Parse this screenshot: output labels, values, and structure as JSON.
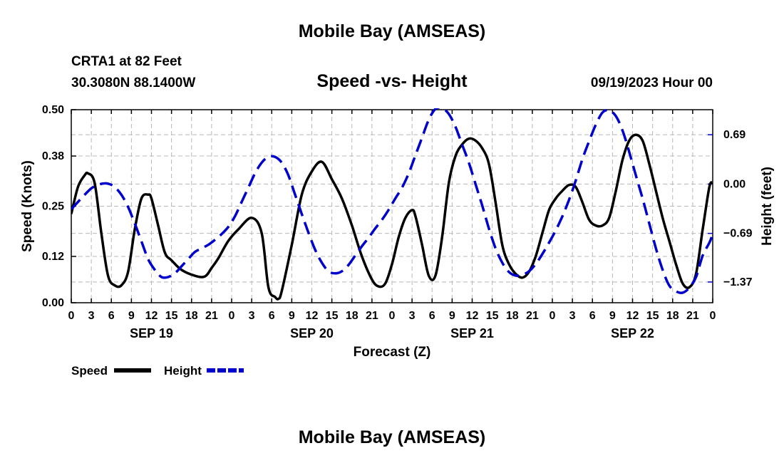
{
  "header": {
    "title": "Mobile Bay (AMSEAS)",
    "station": "CRTA1 at 82 Feet",
    "coordinates": "30.3080N  88.1400W",
    "datetime": "09/19/2023 Hour 00"
  },
  "footer": {
    "title": "Mobile Bay (AMSEAS)"
  },
  "chart_data": {
    "type": "line",
    "title": "Speed -vs- Height",
    "xlabel": "Forecast (Z)",
    "ylabel": "Speed (Knots)",
    "y2label": "Height (feet)",
    "xlim": [
      0,
      96
    ],
    "ylim": [
      0,
      0.5
    ],
    "y2lim": [
      -1.66,
      1.04
    ],
    "grid": true,
    "legend_position": "bottom-left",
    "x_ticks": [
      0,
      3,
      6,
      9,
      12,
      15,
      18,
      21,
      24,
      27,
      30,
      33,
      36,
      39,
      42,
      45,
      48,
      51,
      54,
      57,
      60,
      63,
      66,
      69,
      72,
      75,
      78,
      81,
      84,
      87,
      90,
      93,
      96
    ],
    "x_tick_labels": [
      "0",
      "3",
      "6",
      "9",
      "12",
      "15",
      "18",
      "21",
      "0",
      "3",
      "6",
      "9",
      "12",
      "15",
      "18",
      "21",
      "0",
      "3",
      "6",
      "9",
      "12",
      "15",
      "18",
      "21",
      "0",
      "3",
      "6",
      "9",
      "12",
      "15",
      "18",
      "21",
      "0"
    ],
    "day_labels": [
      {
        "at": 12,
        "label": "SEP 19"
      },
      {
        "at": 36,
        "label": "SEP 20"
      },
      {
        "at": 60,
        "label": "SEP 21"
      },
      {
        "at": 84,
        "label": "SEP 22"
      }
    ],
    "y_ticks": [
      0.0,
      0.12,
      0.25,
      0.38,
      0.5
    ],
    "y_tick_labels": [
      "0.00",
      "0.12",
      "0.25",
      "0.38",
      "0.50"
    ],
    "y2_ticks": [
      -1.37,
      -0.69,
      0.0,
      0.69
    ],
    "y2_tick_labels": [
      "−1.37",
      "−0.69",
      "0.00",
      "0.69"
    ],
    "series": [
      {
        "name": "Speed",
        "axis": "left",
        "color": "#000000",
        "style": "solid",
        "x": [
          0,
          1,
          2,
          2.5,
          3.5,
          4.5,
          5.5,
          6.5,
          7.5,
          8.5,
          9.5,
          10.5,
          11.5,
          12,
          13,
          14,
          15,
          16.5,
          18.5,
          20,
          21,
          22,
          23.5,
          25,
          27,
          28.5,
          29.5,
          30.5,
          31,
          31.5,
          33,
          34.5,
          36,
          37.5,
          39,
          40.5,
          42,
          43.5,
          45,
          46,
          47,
          48,
          49,
          50,
          51,
          51.5,
          52.5,
          53.5,
          54.5,
          55.5,
          56.5,
          57.5,
          58.5,
          59.5,
          60.5,
          61.5,
          62.5,
          63.5,
          64.5,
          65.5,
          66.5,
          67.5,
          68.5,
          69.5,
          70.5,
          71.5,
          72.5,
          73.5,
          74.5,
          75.5,
          76.5,
          77.5,
          78.5,
          79.5,
          80.5,
          81.5,
          82.5,
          83.5,
          84.5,
          85.5,
          86.5,
          87.5,
          88.5,
          89.5,
          90.5,
          91.5,
          92.5,
          93.5,
          94.5,
          95.5,
          96
        ],
        "values": [
          0.23,
          0.3,
          0.33,
          0.335,
          0.31,
          0.18,
          0.07,
          0.045,
          0.045,
          0.08,
          0.19,
          0.27,
          0.28,
          0.27,
          0.2,
          0.13,
          0.11,
          0.085,
          0.07,
          0.068,
          0.09,
          0.115,
          0.16,
          0.19,
          0.22,
          0.18,
          0.04,
          0.015,
          0.01,
          0.03,
          0.15,
          0.28,
          0.34,
          0.365,
          0.32,
          0.27,
          0.2,
          0.12,
          0.06,
          0.042,
          0.05,
          0.1,
          0.17,
          0.22,
          0.24,
          0.225,
          0.15,
          0.07,
          0.07,
          0.17,
          0.31,
          0.38,
          0.41,
          0.425,
          0.42,
          0.4,
          0.36,
          0.26,
          0.15,
          0.1,
          0.075,
          0.065,
          0.08,
          0.12,
          0.18,
          0.24,
          0.27,
          0.29,
          0.305,
          0.3,
          0.26,
          0.215,
          0.2,
          0.2,
          0.22,
          0.29,
          0.37,
          0.42,
          0.435,
          0.42,
          0.36,
          0.29,
          0.22,
          0.16,
          0.1,
          0.05,
          0.04,
          0.075,
          0.19,
          0.3,
          0.31
        ]
      },
      {
        "name": "Height",
        "axis": "right",
        "color": "#0000cc",
        "style": "dashed",
        "x": [
          0,
          1,
          2,
          3,
          4,
          5,
          5.7,
          6.5,
          7.5,
          8.5,
          9.5,
          10.5,
          11.5,
          12.5,
          13.5,
          14.5,
          15.5,
          16.5,
          17.5,
          18.5,
          19.5,
          20.5,
          21.5,
          22.5,
          23.5,
          24.5,
          25.5,
          26.5,
          27.5,
          28.5,
          29.5,
          30.5,
          31.5,
          32.5,
          33.5,
          34.5,
          35.5,
          36.5,
          37.5,
          38.5,
          39.5,
          40.5,
          41.5,
          42.5,
          43.5,
          44.5,
          45.5,
          46.5,
          47.5,
          48.5,
          49.5,
          50.5,
          51.5,
          52.5,
          53.5,
          54.5,
          55.5,
          56.5,
          57.5,
          58.5,
          59.5,
          60.5,
          61.5,
          62.5,
          63.5,
          64.5,
          65.5,
          66.5,
          67.5,
          68.5,
          69.5,
          70.5,
          71.5,
          72.5,
          73.5,
          74.5,
          75.5,
          76.5,
          77.5,
          78.5,
          79.5,
          80.5,
          81.5,
          82.5,
          83.5,
          84.5,
          85.5,
          86.5,
          87.5,
          88.5,
          89.5,
          90.5,
          91.5,
          92.5,
          93.5,
          94.5,
          95.5,
          96
        ],
        "values": [
          -0.35,
          -0.25,
          -0.15,
          -0.06,
          -0.01,
          0.01,
          0.0,
          -0.04,
          -0.15,
          -0.32,
          -0.55,
          -0.8,
          -1.05,
          -1.2,
          -1.3,
          -1.3,
          -1.25,
          -1.15,
          -1.05,
          -0.95,
          -0.9,
          -0.85,
          -0.78,
          -0.7,
          -0.6,
          -0.45,
          -0.25,
          -0.05,
          0.15,
          0.3,
          0.38,
          0.38,
          0.3,
          0.12,
          -0.15,
          -0.42,
          -0.68,
          -0.92,
          -1.1,
          -1.22,
          -1.25,
          -1.22,
          -1.13,
          -1.0,
          -0.87,
          -0.75,
          -0.62,
          -0.5,
          -0.36,
          -0.2,
          -0.05,
          0.15,
          0.4,
          0.65,
          0.9,
          1.05,
          1.06,
          0.98,
          0.8,
          0.55,
          0.3,
          0.0,
          -0.3,
          -0.62,
          -0.9,
          -1.1,
          -1.23,
          -1.28,
          -1.27,
          -1.22,
          -1.12,
          -0.98,
          -0.82,
          -0.65,
          -0.45,
          -0.22,
          0.05,
          0.35,
          0.6,
          0.83,
          1.0,
          1.03,
          0.95,
          0.75,
          0.45,
          0.12,
          -0.2,
          -0.55,
          -0.9,
          -1.2,
          -1.42,
          -1.5,
          -1.52,
          -1.45,
          -1.3,
          -1.0,
          -0.82,
          -0.7
        ]
      }
    ]
  }
}
